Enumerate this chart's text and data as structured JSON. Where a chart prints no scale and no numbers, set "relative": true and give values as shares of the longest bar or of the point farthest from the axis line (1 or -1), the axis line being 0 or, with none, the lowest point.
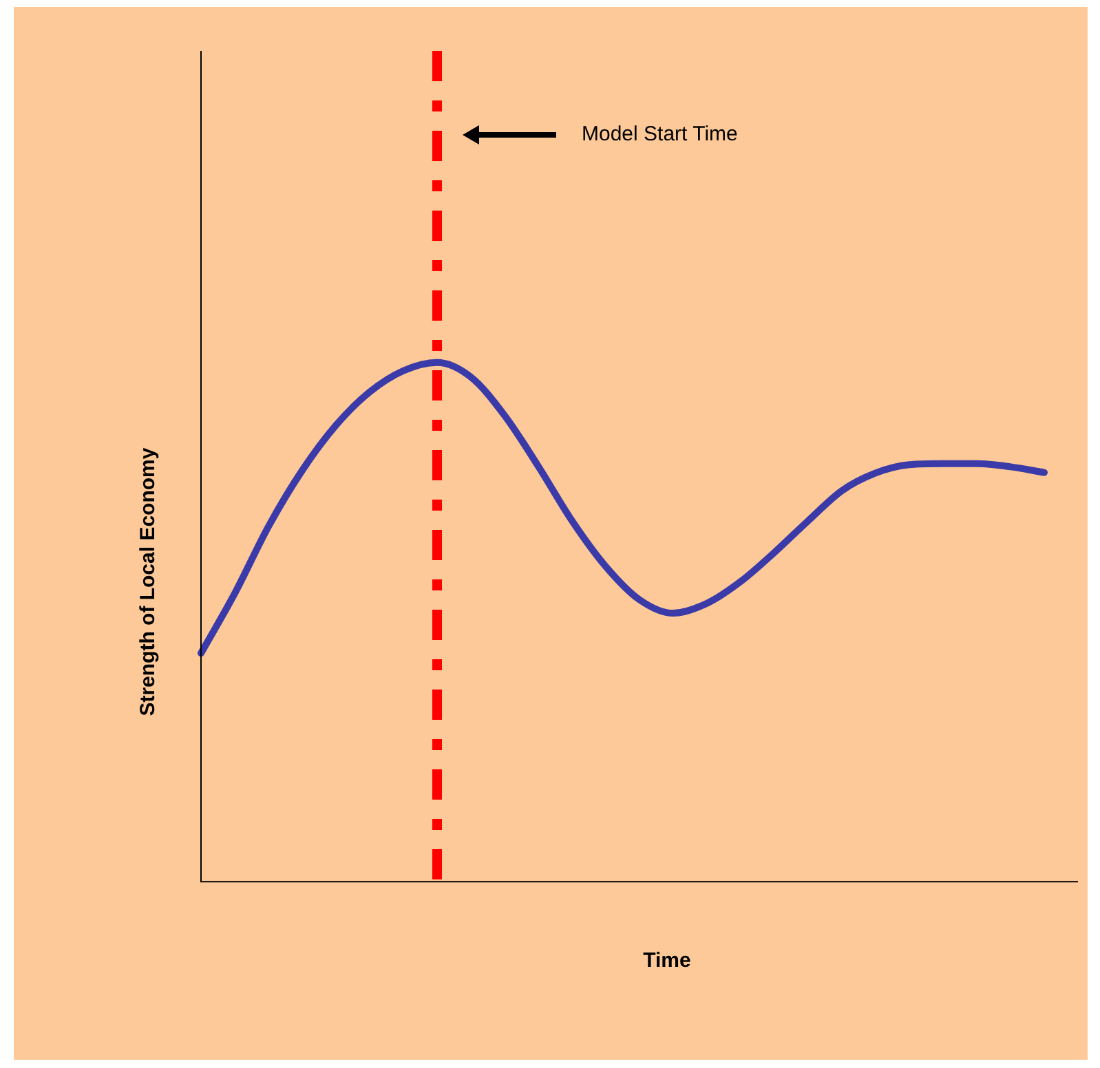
{
  "chart_data": {
    "type": "line",
    "relative": true,
    "xlabel": "Time",
    "ylabel": "Strength of Local Economy",
    "categories": [
      null,
      null,
      null,
      null,
      null,
      null,
      null,
      null,
      null,
      null,
      null,
      null,
      null,
      null,
      null,
      null,
      null,
      null,
      null,
      null,
      null,
      null,
      null,
      null,
      null,
      null,
      null
    ],
    "series": [
      {
        "color": "#3a3aa8",
        "values": [
          0.44,
          0.555,
          0.684,
          0.792,
          0.879,
          0.943,
          0.984,
          1.0,
          0.972,
          0.898,
          0.8,
          0.695,
          0.607,
          0.543,
          0.517,
          0.536,
          0.578,
          0.634,
          0.695,
          0.753,
          0.787,
          0.803,
          0.805,
          0.805,
          0.799,
          0.788,
          null
        ]
      }
    ],
    "annotations": [
      "Model Start Time"
    ],
    "legend": false,
    "marker": "none",
    "line_style": "solid"
  }
}
